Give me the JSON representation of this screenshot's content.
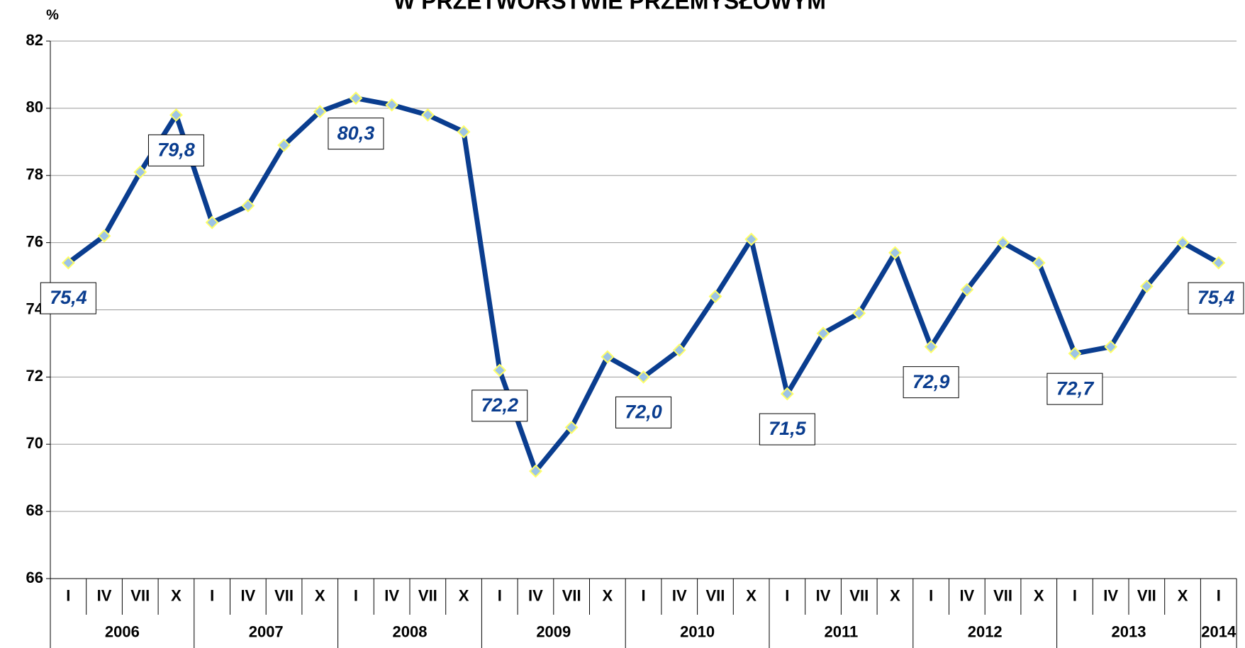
{
  "chart_data": {
    "type": "line",
    "title": "W PRZETWÓRSTWIE PRZEMYSŁOWYM",
    "y_label": "%",
    "categories": [
      "I",
      "IV",
      "VII",
      "X",
      "I",
      "IV",
      "VII",
      "X",
      "I",
      "IV",
      "VII",
      "X",
      "I",
      "IV",
      "VII",
      "X",
      "I",
      "IV",
      "VII",
      "X",
      "I",
      "IV",
      "VII",
      "X",
      "I",
      "IV",
      "VII",
      "X",
      "I",
      "IV",
      "VII",
      "X",
      "I"
    ],
    "years": [
      "2006",
      "2007",
      "2008",
      "2009",
      "2010",
      "2011",
      "2012",
      "2013",
      "2014"
    ],
    "series": [
      {
        "name": "",
        "color": "#0a3d8f",
        "marker_color": "#9cc3e6",
        "values": [
          75.4,
          76.2,
          78.1,
          79.8,
          76.6,
          77.1,
          78.9,
          79.9,
          80.3,
          80.1,
          79.8,
          79.3,
          72.2,
          69.2,
          70.5,
          72.6,
          72.0,
          72.8,
          74.4,
          76.1,
          71.5,
          73.3,
          73.9,
          75.7,
          72.9,
          74.6,
          76.0,
          75.4,
          72.7,
          72.9,
          74.7,
          76.0,
          75.4
        ],
        "value_labels": [
          "75,4",
          null,
          null,
          "79,8",
          null,
          null,
          null,
          null,
          "80,3",
          null,
          null,
          null,
          "72,2",
          null,
          null,
          null,
          "72,0",
          null,
          null,
          null,
          "71,5",
          null,
          null,
          null,
          "72,9",
          null,
          null,
          null,
          "72,7",
          null,
          null,
          null,
          "75,4"
        ]
      }
    ],
    "ylim": [
      66,
      82
    ],
    "yticks": [
      66,
      68,
      70,
      72,
      74,
      76,
      78,
      80,
      82
    ],
    "grid": true
  }
}
